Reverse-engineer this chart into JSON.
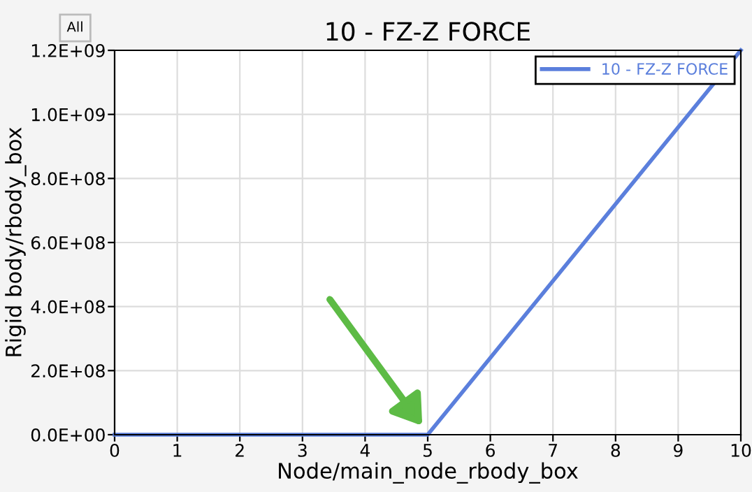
{
  "chart_data": {
    "type": "line",
    "title": "10 - FZ-Z FORCE",
    "xlabel": "Node/main_node_rbody_box",
    "ylabel": "Rigid body/rbody_box",
    "annotations": [
      "All"
    ],
    "x": [
      0,
      5,
      10
    ],
    "series": [
      {
        "name": "10 - FZ-Z FORCE",
        "color": "#5b7fdc",
        "values": [
          0,
          0,
          1200000000
        ]
      }
    ],
    "xlim": [
      0,
      10
    ],
    "xticks": [
      0,
      1,
      2,
      3,
      4,
      5,
      6,
      7,
      8,
      9,
      10
    ],
    "ylim": [
      0,
      1200000000
    ],
    "yticks": [
      {
        "value": 0,
        "label": "0.0E+00"
      },
      {
        "value": 200000000,
        "label": "2.0E+08"
      },
      {
        "value": 400000000,
        "label": "4.0E+08"
      },
      {
        "value": 600000000,
        "label": "6.0E+08"
      },
      {
        "value": 800000000,
        "label": "8.0E+08"
      },
      {
        "value": 1000000000,
        "label": "1.0E+09"
      },
      {
        "value": 1200000000,
        "label": "1.2E+09"
      }
    ],
    "grid": true,
    "legend": "top right",
    "line_style": "solid",
    "marker": "none"
  }
}
